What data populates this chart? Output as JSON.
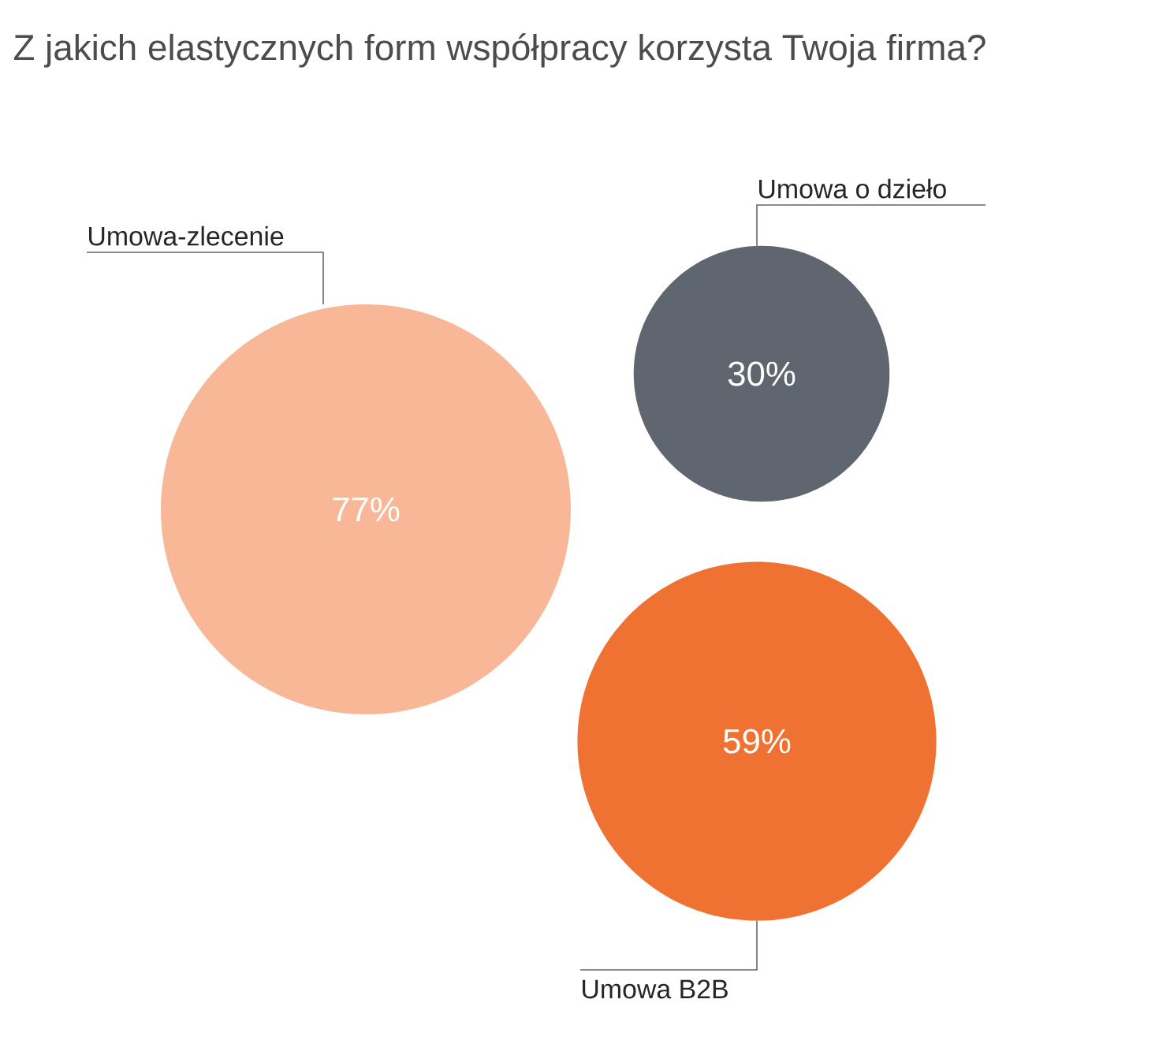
{
  "chart_data": {
    "type": "other",
    "title": "Z jakich elastycznych form współpracy korzysta Twoja firma?",
    "categories": [
      "Umowa-zlecenie",
      "Umowa o dzieło",
      "Umowa B2B"
    ],
    "values": [
      77,
      30,
      59
    ],
    "value_labels": [
      "77%",
      "30%",
      "59%"
    ],
    "colors": [
      "#f8b898",
      "#5f6670",
      "#f07232"
    ]
  }
}
